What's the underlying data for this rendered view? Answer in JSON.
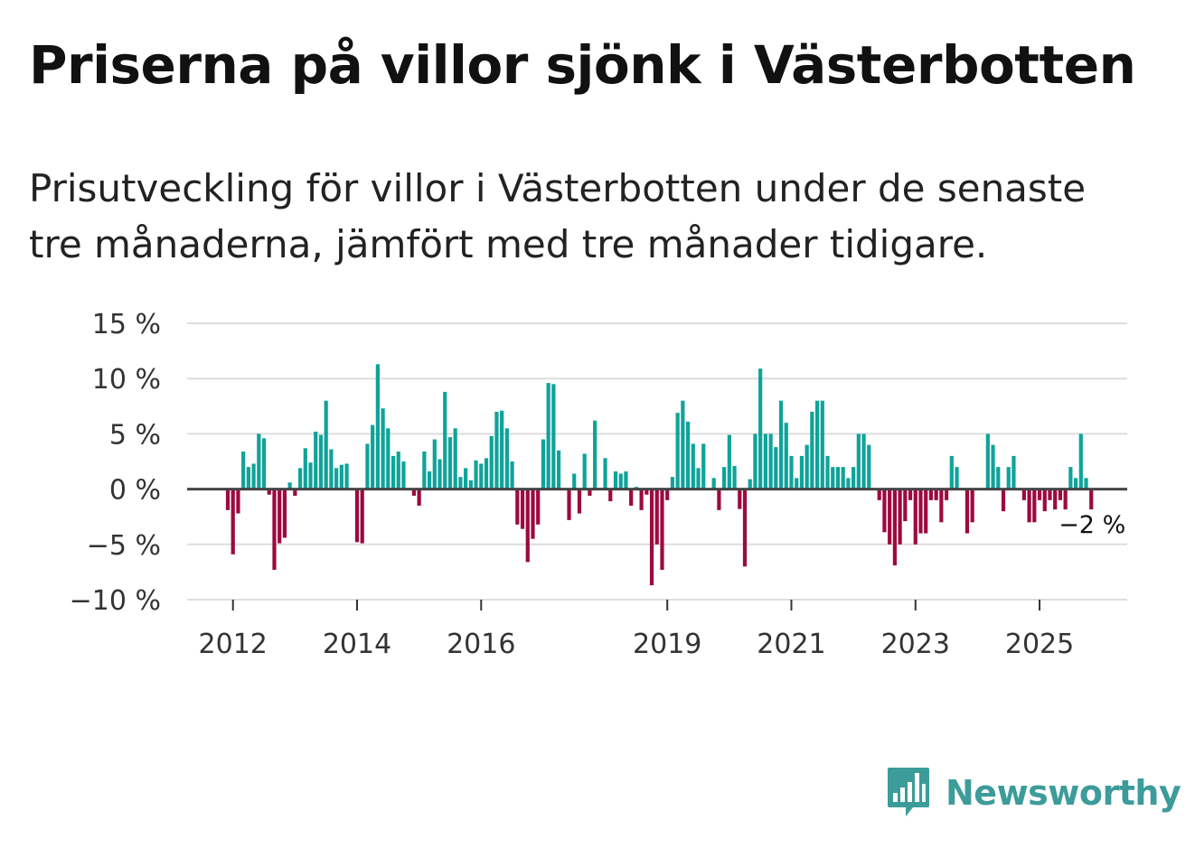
{
  "header": {
    "title": "Priserna på villor sjönk i Västerbotten",
    "subtitle": "Prisutveckling för villor i Västerbotten under de senaste tre månaderna, jämfört med tre månader tidigare."
  },
  "brand": {
    "name": "Newsworthy",
    "icon": "newsworthy-logo-icon"
  },
  "colors": {
    "positive": "#0fa39a",
    "negative": "#9c0a3f",
    "grid": "#dddddd",
    "zero": "#444444"
  },
  "chart_data": {
    "type": "bar",
    "title": "Priserna på villor sjönk i Västerbotten",
    "xlabel": "",
    "ylabel": "",
    "ylim": [
      -10,
      15
    ],
    "yticks": [
      -10,
      -5,
      0,
      5,
      10,
      15
    ],
    "ytick_labels": [
      "−10 %",
      "−5 %",
      "0 %",
      "5 %",
      "10 %",
      "15 %"
    ],
    "xticks": [
      {
        "label": "2012",
        "index": 1
      },
      {
        "label": "2014",
        "index": 25
      },
      {
        "label": "2016",
        "index": 49
      },
      {
        "label": "2019",
        "index": 85
      },
      {
        "label": "2021",
        "index": 109
      },
      {
        "label": "2023",
        "index": 133
      },
      {
        "label": "2025",
        "index": 157
      }
    ],
    "start": "2011-12",
    "frequency": "monthly",
    "unit": "%",
    "annotation": {
      "label": "−2 %",
      "value": -2
    },
    "values": [
      -1.9,
      -5.9,
      -2.2,
      3.4,
      2.0,
      2.3,
      5.0,
      4.6,
      -0.5,
      -7.3,
      -4.9,
      -4.4,
      0.6,
      -0.6,
      1.9,
      3.7,
      2.4,
      5.2,
      4.9,
      8.0,
      3.6,
      1.9,
      2.2,
      2.3,
      0.0,
      -4.8,
      -4.9,
      4.1,
      5.8,
      11.3,
      7.3,
      5.5,
      3.0,
      3.4,
      2.5,
      0.0,
      -0.6,
      -1.5,
      3.4,
      1.6,
      4.5,
      2.7,
      8.8,
      4.7,
      5.5,
      1.1,
      1.9,
      0.8,
      2.6,
      2.3,
      2.8,
      4.8,
      7.0,
      7.1,
      5.5,
      2.5,
      -3.2,
      -3.6,
      -6.6,
      -4.5,
      -3.2,
      4.5,
      9.6,
      9.5,
      3.5,
      0.0,
      -2.8,
      1.4,
      -2.2,
      3.2,
      -0.6,
      6.2,
      0.0,
      2.8,
      -1.1,
      1.6,
      1.4,
      1.6,
      -1.5,
      0.2,
      -1.9,
      -0.5,
      -8.7,
      -5.0,
      -7.3,
      -1.0,
      1.1,
      6.9,
      8.0,
      6.1,
      4.1,
      1.9,
      4.1,
      0.0,
      1.0,
      -1.9,
      2.0,
      4.9,
      2.1,
      -1.8,
      -7.0,
      0.9,
      5.0,
      10.9,
      5.0,
      5.0,
      3.8,
      8.0,
      6.0,
      3.0,
      1.0,
      3.0,
      4.0,
      7.0,
      8.0,
      8.0,
      3.0,
      2.0,
      2.0,
      2.0,
      1.0,
      2.0,
      5.0,
      5.0,
      4.0,
      0.0,
      -1.0,
      -3.9,
      -5.0,
      -6.9,
      -5.0,
      -2.9,
      -1.0,
      -5.0,
      -4.0,
      -4.0,
      -1.0,
      -1.0,
      -3.0,
      -1.0,
      3.0,
      2.0,
      0.0,
      -4.0,
      -3.0,
      0.0,
      0.0,
      5.0,
      4.0,
      2.0,
      -2.0,
      2.0,
      3.0,
      0.0,
      -1.0,
      -3.0,
      -3.0,
      -1.0,
      -2.0,
      -1.0,
      -2.0,
      -1.0,
      -3.0,
      2.0,
      1.0,
      5.0,
      1.0,
      -2.0
    ]
  }
}
